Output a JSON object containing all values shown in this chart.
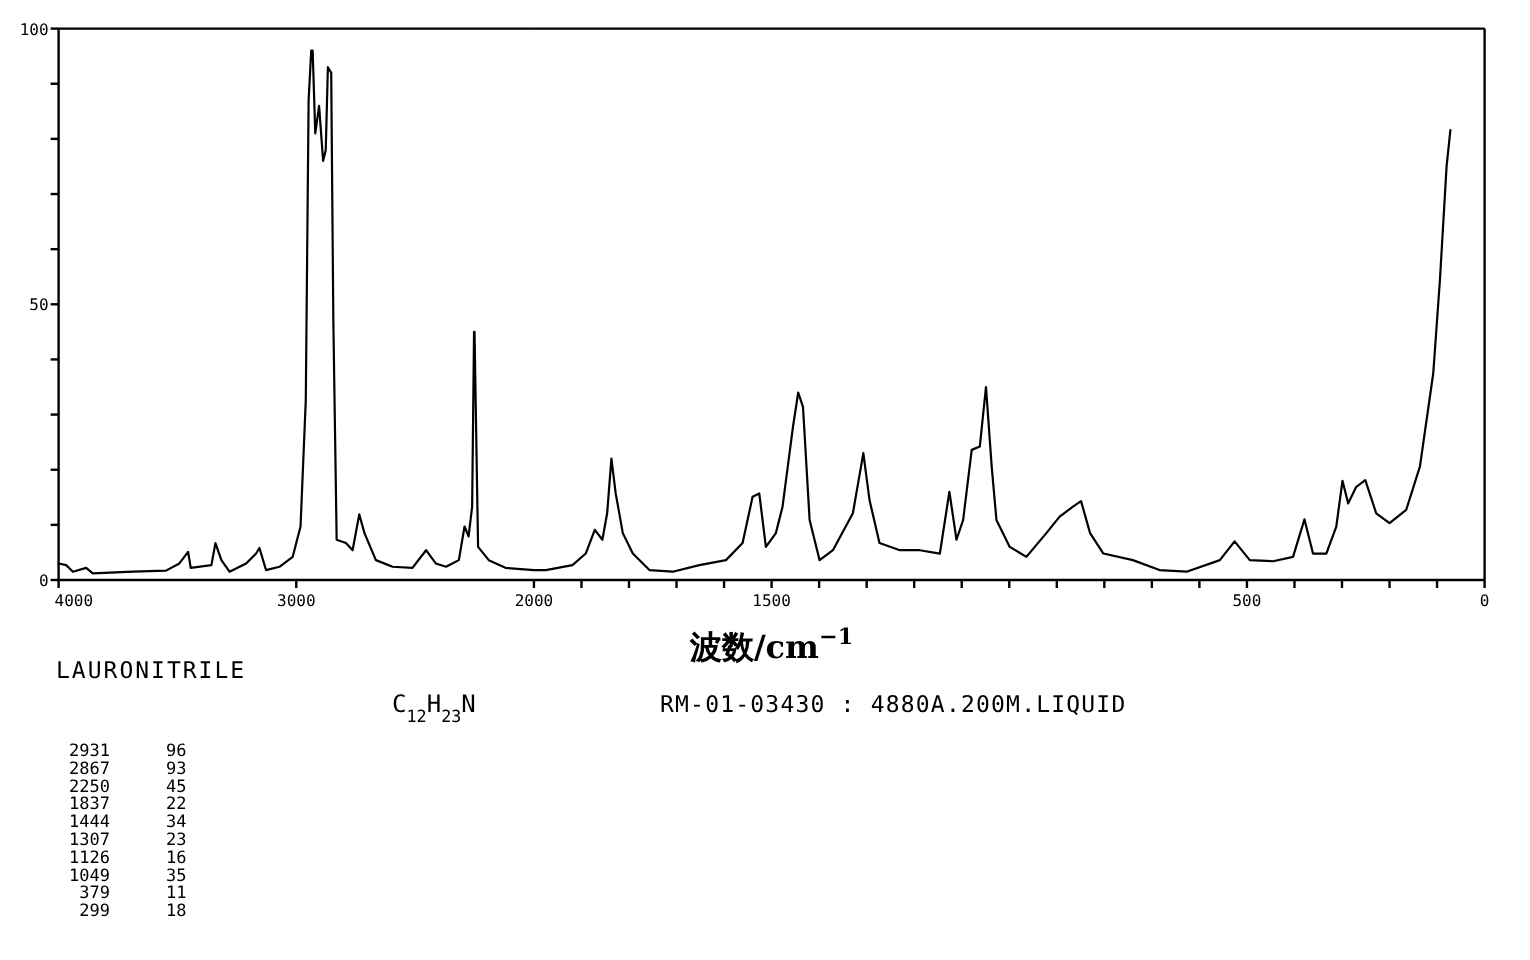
{
  "chart_data": [
    {
      "type": "line",
      "title": "LAURONITRILE",
      "xlabel": "波数/cm$^{−1}$",
      "annotations": [
        "C$_{12}$H$_{23}$N",
        "RM-01-03430 : 4880A.200M.LIQUID",
        "2931 96",
        "2867 93",
        "2250 45",
        "1837 22",
        "1444 34",
        "1307 23",
        "1126 16",
        "1049 35",
        "379 11",
        "299 18"
      ],
      "x": [
        4000,
        3968,
        3940,
        3884,
        3856,
        3688,
        3548,
        3492,
        3455,
        3444,
        3357,
        3340,
        3315,
        3281,
        3211,
        3169,
        3155,
        3127,
        3071,
        3015,
        2982,
        2960,
        2948,
        2937,
        2931,
        2920,
        2904,
        2887,
        2876,
        2867,
        2853,
        2844,
        2830,
        2791,
        2763,
        2735,
        2713,
        2665,
        2595,
        2511,
        2454,
        2413,
        2370,
        2316,
        2292,
        2275,
        2260,
        2252,
        2250,
        2235,
        2190,
        2120,
        2000
      ],
      "series": [
        {
          "color": "#000000",
          "values": [
            3,
            2.7,
            1.5,
            2.2,
            1.2,
            1.5,
            1.7,
            3,
            5.1,
            2.2,
            2.7,
            6.7,
            3.6,
            1.5,
            3,
            4.8,
            5.8,
            1.8,
            2.4,
            4.2,
            9.7,
            32.6,
            87,
            96,
            96,
            81,
            86,
            76,
            78,
            93,
            92,
            47,
            7.3,
            6.7,
            5.4,
            11.9,
            8.5,
            3.6,
            2.4,
            2.2,
            5.4,
            3,
            2.4,
            3.6,
            9.7,
            7.9,
            13.3,
            45,
            45,
            6,
            3.6,
            2.2,
            1.8
          ]
        }
      ],
      "xlim": [
        4000,
        2000
      ],
      "xticks": [
        4000,
        3000,
        2000
      ],
      "ylim": [
        0,
        100
      ],
      "yticks": [
        0,
        {
          "value": 10,
          "label": null
        },
        {
          "value": 20,
          "label": null
        },
        {
          "value": 30,
          "label": null
        },
        {
          "value": 40,
          "label": null
        },
        50,
        {
          "value": 60,
          "label": null
        },
        {
          "value": 70,
          "label": null
        },
        {
          "value": 80,
          "label": null
        },
        {
          "value": 90,
          "label": null
        },
        100
      ]
    },
    {
      "type": "line",
      "x": [
        2000,
        1975,
        1919,
        1891,
        1872,
        1856,
        1846,
        1837,
        1828,
        1813,
        1792,
        1757,
        1708,
        1652,
        1596,
        1561,
        1540,
        1526,
        1512,
        1491,
        1477,
        1455,
        1444,
        1434,
        1420,
        1399,
        1371,
        1329,
        1307,
        1294,
        1273,
        1230,
        1188,
        1146,
        1126,
        1111,
        1097,
        1079,
        1062,
        1049,
        1037,
        1027,
        999,
        964,
        922,
        894,
        866,
        849,
        830,
        802,
        740,
        684,
        627,
        557,
        526,
        494,
        445,
        403,
        379,
        361,
        333,
        312,
        299,
        287,
        270,
        251,
        228,
        200,
        165,
        136,
        108,
        94,
        80,
        72
      ],
      "series": [
        {
          "color": "#000000",
          "values": [
            1.8,
            1.8,
            2.7,
            4.8,
            9.1,
            7.3,
            12.1,
            22,
            15.7,
            8.5,
            4.8,
            1.8,
            1.5,
            2.7,
            3.6,
            6.7,
            15.1,
            15.7,
            6,
            8.5,
            13.3,
            27.8,
            34,
            31.4,
            10.9,
            3.6,
            5.4,
            12.1,
            23,
            14.5,
            6.7,
            5.4,
            5.4,
            4.8,
            16,
            7.3,
            10.9,
            23.6,
            24.2,
            35,
            20.6,
            10.9,
            6,
            4.2,
            8.5,
            11.5,
            13.3,
            14.3,
            8.5,
            4.8,
            3.6,
            1.8,
            1.5,
            3.6,
            7,
            3.6,
            3.4,
            4.2,
            11,
            4.8,
            4.8,
            9.7,
            18,
            13.9,
            16.9,
            18.1,
            12.1,
            10.3,
            12.7,
            20.6,
            37.5,
            54.4,
            75,
            81.6
          ]
        }
      ],
      "xlim": [
        2000,
        0
      ],
      "xticks": [
        {
          "value": 1900,
          "label": null
        },
        {
          "value": 1800,
          "label": null
        },
        {
          "value": 1700,
          "label": null
        },
        {
          "value": 1600,
          "label": null
        },
        1500,
        {
          "value": 1400,
          "label": null
        },
        {
          "value": 1300,
          "label": null
        },
        {
          "value": 1200,
          "label": null
        },
        {
          "value": 1100,
          "label": null
        },
        {
          "value": 1000,
          "label": null
        },
        {
          "value": 900,
          "label": null
        },
        {
          "value": 800,
          "label": null
        },
        {
          "value": 700,
          "label": null
        },
        {
          "value": 600,
          "label": null
        },
        500,
        {
          "value": 400,
          "label": null
        },
        {
          "value": 300,
          "label": null
        },
        {
          "value": 200,
          "label": null
        },
        {
          "value": 100,
          "label": null
        },
        0
      ],
      "ylim": [
        0,
        100
      ],
      "tick_labels": "x"
    }
  ]
}
